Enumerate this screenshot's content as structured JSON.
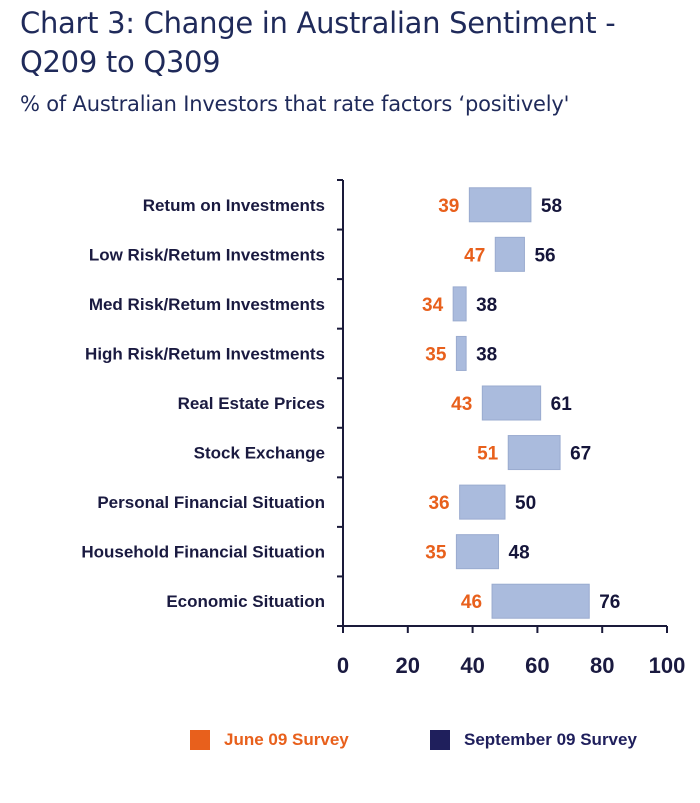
{
  "chart_data": {
    "type": "bar",
    "subtype": "floating-range-horizontal",
    "title": "Chart 3: Change in Australian Sentiment - Q209 to Q309",
    "subtitle": "% of Australian Investors that rate factors ‘positively'",
    "xlabel": "",
    "ylabel": "",
    "xlim": [
      0,
      100
    ],
    "x_ticks": [
      0,
      20,
      40,
      60,
      80,
      100
    ],
    "x_tick_labels": [
      "0",
      "20",
      "40",
      "60",
      "80",
      "100"
    ],
    "grid": false,
    "legend_position": "bottom",
    "categories": [
      "Return on Investments",
      "Low Risk/Return Investments",
      "Med Risk/Return Investments",
      "High Risk/Return Investments",
      "Real Estate Prices",
      "Stock Exchange",
      "Personal Financial Situation",
      "Household Financial Situation",
      "Economic Situation"
    ],
    "category_labels": [
      "Retum on Investments",
      "Low Risk/Retum Investments",
      "Med Risk/Retum Investments",
      "High Risk/Retum Investments",
      "Real Estate Prices",
      "Stock Exchange",
      "Personal Financial Situation",
      "Household Financial Situation",
      "Economic Situation"
    ],
    "series": [
      {
        "name": "June 09 Survey",
        "color": "#e8601c",
        "values": [
          39,
          47,
          34,
          35,
          43,
          51,
          36,
          35,
          46
        ]
      },
      {
        "name": "September 09 Survey",
        "color": "#1f1f5c",
        "values": [
          58,
          56,
          38,
          38,
          61,
          67,
          50,
          48,
          76
        ]
      }
    ],
    "range_bar_color": "#aabbdd"
  },
  "colors": {
    "title": "#1f2a5a",
    "axis": "#1a1a3a",
    "range_bar": "#aabbdd",
    "range_bar_border": "#9aabcf",
    "june": "#e8601c",
    "september": "#1f1f5c"
  },
  "legend": {
    "items": [
      {
        "label": "June 09 Survey",
        "color": "#e8601c"
      },
      {
        "label": "September 09 Survey",
        "color": "#1f1f5c"
      }
    ]
  }
}
